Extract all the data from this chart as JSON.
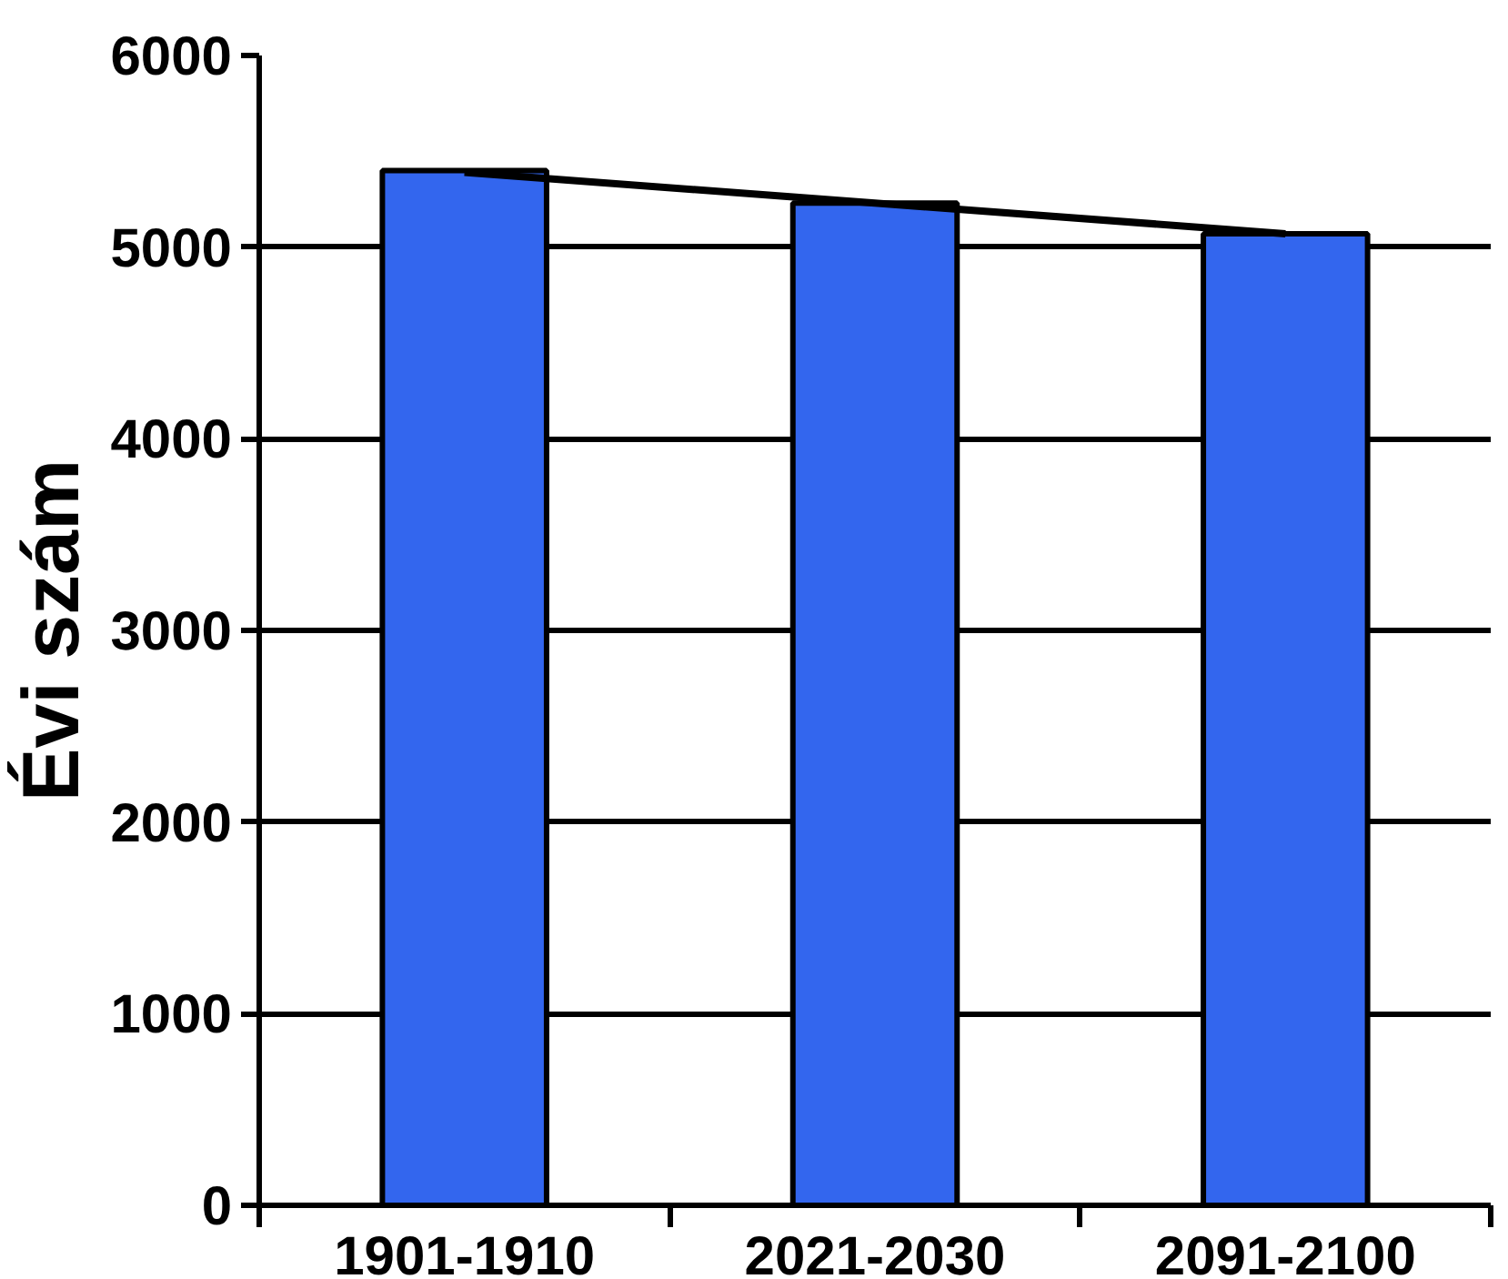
{
  "chart_data": {
    "type": "bar",
    "ylabel": "Évi szám",
    "categories": [
      "1901-1910",
      "2021-2030",
      "2091-2100"
    ],
    "series": [
      {
        "color": "#3366ee",
        "values": [
          5400,
          5230,
          5070
        ]
      },
      {
        "type": "line",
        "color": "#000000",
        "values": [
          5390,
          5230,
          5070
        ]
      }
    ],
    "ylim": [
      0,
      6000
    ],
    "yticks": [
      0,
      1000,
      2000,
      3000,
      4000,
      5000,
      6000
    ],
    "grid": "y"
  }
}
